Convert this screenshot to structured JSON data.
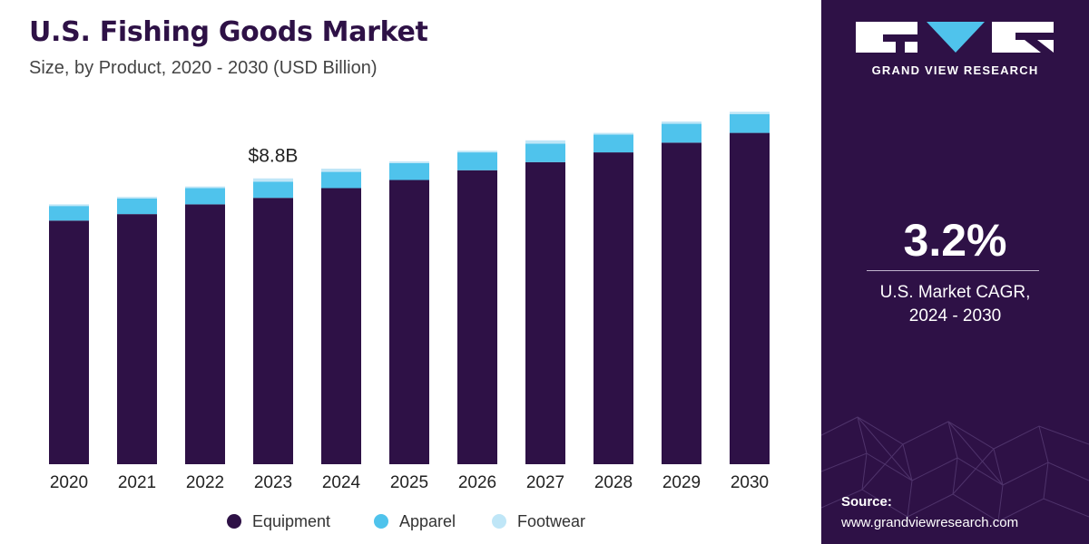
{
  "header": {
    "title": "U.S. Fishing Goods Market",
    "subtitle": "Size, by Product, 2020 - 2030 (USD Billion)"
  },
  "chart_data": {
    "type": "bar",
    "stacked": true,
    "title": "U.S. Fishing Goods Market",
    "subtitle": "Size, by Product, 2020 - 2030 (USD Billion)",
    "categories": [
      "2020",
      "2021",
      "2022",
      "2023",
      "2024",
      "2025",
      "2026",
      "2027",
      "2028",
      "2029",
      "2030"
    ],
    "series": [
      {
        "name": "Equipment",
        "color": "#2e1146",
        "values": [
          7.5,
          7.7,
          8.0,
          8.2,
          8.5,
          8.75,
          9.05,
          9.3,
          9.6,
          9.9,
          10.2
        ]
      },
      {
        "name": "Apparel",
        "color": "#4fc3ec",
        "values": [
          0.45,
          0.48,
          0.5,
          0.5,
          0.5,
          0.52,
          0.55,
          0.57,
          0.55,
          0.58,
          0.58
        ]
      },
      {
        "name": "Footwear",
        "color": "#bfe6f7",
        "values": [
          0.05,
          0.05,
          0.05,
          0.1,
          0.1,
          0.05,
          0.05,
          0.1,
          0.05,
          0.07,
          0.07
        ]
      }
    ],
    "annotations": [
      {
        "category": "2023",
        "text": "$8.8B"
      }
    ],
    "ylim": [
      0,
      11.5
    ],
    "grid": false,
    "legend": "bottom"
  },
  "sidebar": {
    "brand": "GRAND VIEW RESEARCH",
    "cagr_value": "3.2%",
    "cagr_label_line1": "U.S. Market CAGR,",
    "cagr_label_line2": "2024 - 2030",
    "source_title": "Source:",
    "source_url": "www.grandviewresearch.com",
    "background_color": "#2e1146"
  }
}
